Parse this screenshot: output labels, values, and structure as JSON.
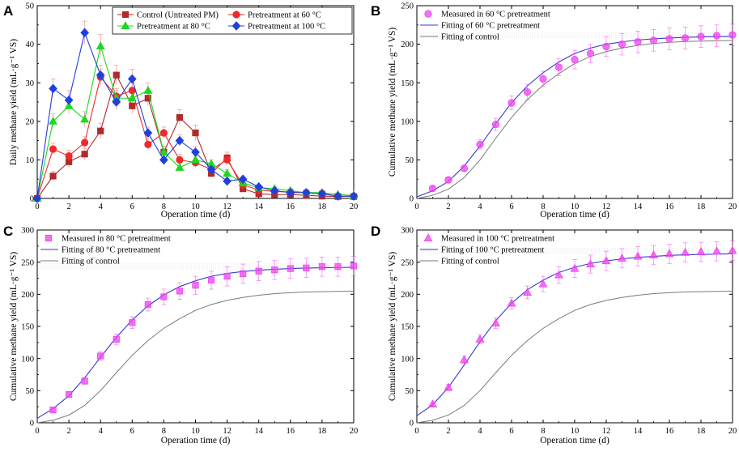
{
  "colors": {
    "control": "#b22a2a",
    "p60": "#ee2a2a",
    "p80": "#1ed81e",
    "p100": "#2040dd",
    "measured": "#ee44ee",
    "fit_treat": "#3a3acc",
    "fit_control": "#7a7a7a",
    "errorbar": "#f0a0a0"
  },
  "chart_data": [
    {
      "panel": "A",
      "type": "line",
      "xlabel": "Operation time (d)",
      "ylabel": "Daily methane yield (mL·g⁻¹ VS)",
      "xlim": [
        0,
        20
      ],
      "ylim": [
        0,
        50
      ],
      "xticks": [
        0,
        2,
        4,
        6,
        8,
        10,
        12,
        14,
        16,
        18,
        20
      ],
      "yticks": [
        0,
        10,
        20,
        30,
        40,
        50
      ],
      "legend": "top-right",
      "x": [
        0,
        1,
        2,
        3,
        4,
        5,
        6,
        7,
        8,
        9,
        10,
        11,
        12,
        13,
        14,
        15,
        16,
        17,
        18,
        19,
        20
      ],
      "series": [
        {
          "name": "Control (Untreated PM)",
          "marker": "square",
          "color": "#b22a2a",
          "values": [
            0,
            5.8,
            9.5,
            11.5,
            17.5,
            32,
            24,
            26,
            12,
            21,
            17,
            6.5,
            10.5,
            2.5,
            1.2,
            1,
            1,
            0.8,
            0.6,
            0.5,
            0.5
          ],
          "errors": [
            0,
            1.2,
            1.5,
            1.5,
            2,
            2.5,
            2,
            2,
            1.5,
            2,
            2,
            1,
            1.5,
            0.5,
            0.3,
            0.3,
            0.3,
            0.2,
            0.2,
            0.2,
            0.2
          ]
        },
        {
          "name": "Pretreatment at 60 °C",
          "marker": "circle",
          "color": "#ee2a2a",
          "values": [
            0,
            12.8,
            11,
            14.5,
            31.5,
            26.5,
            28,
            14,
            17,
            10,
            9.3,
            7.5,
            10,
            3.5,
            2.2,
            1.8,
            1.7,
            1.5,
            1.3,
            0.6,
            0.5
          ],
          "errors": [
            0,
            1.5,
            1.5,
            1.5,
            2,
            2,
            2,
            1.5,
            1.5,
            1.5,
            1.2,
            1.2,
            1.5,
            0.5,
            0.3,
            0.3,
            0.3,
            0.3,
            0.3,
            0.2,
            0.2
          ]
        },
        {
          "name": "Pretreatment at 80 °C",
          "marker": "triangle",
          "color": "#1ed81e",
          "values": [
            0,
            20,
            24,
            20.5,
            39.5,
            26,
            26,
            28,
            12,
            8,
            10,
            9,
            6.5,
            4,
            2.8,
            2.5,
            2,
            1.5,
            1.5,
            1,
            0.8
          ],
          "errors": [
            0,
            2,
            2,
            2,
            3,
            2,
            2,
            2,
            1.5,
            1,
            1,
            1,
            1,
            0.5,
            0.3,
            0.3,
            0.3,
            0.3,
            0.3,
            0.2,
            0.2
          ]
        },
        {
          "name": "Pretreatment at 100 °C",
          "marker": "diamond",
          "color": "#2040dd",
          "values": [
            0,
            28.5,
            25.5,
            43,
            32,
            25,
            31,
            17,
            10,
            15,
            12,
            7.5,
            4.5,
            5,
            3,
            2,
            1.5,
            1.5,
            1.2,
            0.6,
            0.6
          ],
          "errors": [
            0,
            2.5,
            2.5,
            3,
            2.5,
            2,
            2.5,
            1.5,
            1.5,
            1.5,
            1.5,
            1,
            1,
            0.5,
            0.3,
            0.3,
            0.3,
            0.3,
            0.3,
            0.2,
            0.2
          ]
        }
      ]
    },
    {
      "panel": "B",
      "type": "scatter",
      "xlabel": "Operation time (d)",
      "ylabel": "Cumulative methane yield (mL·g⁻¹ VS)",
      "xlim": [
        0,
        20
      ],
      "ylim": [
        0,
        250
      ],
      "xticks": [
        0,
        2,
        4,
        6,
        8,
        10,
        12,
        14,
        16,
        18,
        20
      ],
      "yticks": [
        0,
        50,
        100,
        150,
        200,
        250
      ],
      "legend": "top-left",
      "measured": {
        "name": "Measured in 60 °C pretreatment",
        "marker": "circle",
        "x": [
          1,
          2,
          3,
          4,
          5,
          6,
          7,
          8,
          9,
          10,
          11,
          12,
          13,
          14,
          15,
          16,
          17,
          18,
          19,
          20
        ],
        "y": [
          13,
          24,
          39,
          70,
          96,
          124,
          138,
          155,
          170,
          180,
          188,
          197,
          200,
          203,
          205,
          207,
          208,
          210,
          211,
          212
        ],
        "errors": [
          2,
          3,
          4,
          6,
          8,
          9,
          10,
          10,
          11,
          12,
          12,
          13,
          14,
          14,
          14,
          14,
          14,
          14,
          14,
          14
        ]
      },
      "fit": {
        "name": "Fitting of 60 °C pretreatment",
        "x": [
          0,
          1,
          2,
          3,
          4,
          5,
          6,
          7,
          8,
          9,
          10,
          11,
          12,
          13,
          14,
          15,
          16,
          17,
          18,
          19,
          20
        ],
        "y": [
          2,
          10,
          22,
          42,
          68,
          97,
          124,
          146,
          163,
          177,
          188,
          195,
          200,
          203,
          205.5,
          207,
          208,
          209,
          209.5,
          210,
          210
        ]
      },
      "control_fit": {
        "name": "Fitting of control",
        "x": [
          0,
          1,
          2,
          3,
          4,
          5,
          6,
          7,
          8,
          9,
          10,
          11,
          12,
          13,
          14,
          15,
          16,
          17,
          18,
          19,
          20
        ],
        "y": [
          0,
          4,
          12,
          27,
          50,
          78,
          105,
          128,
          147,
          162,
          175,
          184,
          190.5,
          195,
          198.5,
          201,
          202.5,
          203.5,
          204,
          204.5,
          204.8
        ]
      }
    },
    {
      "panel": "C",
      "type": "scatter",
      "xlabel": "Operation time (d)",
      "ylabel": "Cumulative methane yield (mL·g⁻¹ VS)",
      "xlim": [
        0,
        20
      ],
      "ylim": [
        0,
        300
      ],
      "xticks": [
        0,
        2,
        4,
        6,
        8,
        10,
        12,
        14,
        16,
        18,
        20
      ],
      "yticks": [
        0,
        50,
        100,
        150,
        200,
        250,
        300
      ],
      "legend": "top-left",
      "measured": {
        "name": "Measured in 80 °C pretreatment",
        "marker": "square",
        "x": [
          1,
          2,
          3,
          4,
          5,
          6,
          7,
          8,
          9,
          10,
          11,
          12,
          13,
          14,
          15,
          16,
          17,
          18,
          19,
          20
        ],
        "y": [
          20,
          44,
          65,
          104,
          130,
          156,
          184,
          196,
          205,
          214,
          222,
          228,
          232,
          236,
          238,
          240,
          241,
          243,
          243,
          244
        ],
        "errors": [
          3,
          4,
          5,
          7,
          8,
          9,
          10,
          12,
          13,
          14,
          14,
          15,
          15,
          15,
          15,
          15,
          15,
          15,
          15,
          15
        ]
      },
      "fit": {
        "name": "Fitting of 80 °C pretreatment",
        "x": [
          0,
          1,
          2,
          3,
          4,
          5,
          6,
          7,
          8,
          9,
          10,
          11,
          12,
          13,
          14,
          15,
          16,
          17,
          18,
          19,
          20
        ],
        "y": [
          7,
          22,
          42,
          70,
          102,
          133,
          160,
          182,
          199,
          212,
          221,
          228,
          232.5,
          235.5,
          237.5,
          239,
          240,
          240.8,
          241.3,
          241.7,
          242
        ]
      },
      "control_fit": {
        "name": "Fitting of control",
        "x": [
          0,
          1,
          2,
          3,
          4,
          5,
          6,
          7,
          8,
          9,
          10,
          11,
          12,
          13,
          14,
          15,
          16,
          17,
          18,
          19,
          20
        ],
        "y": [
          0,
          4,
          12,
          27,
          50,
          78,
          105,
          128,
          147,
          162,
          175,
          184,
          190.5,
          195,
          198.5,
          201,
          202.5,
          203.5,
          204,
          204.5,
          204.8
        ]
      }
    },
    {
      "panel": "D",
      "type": "scatter",
      "xlabel": "Operation time (d)",
      "ylabel": "Cumulative methane yield (mL·g⁻¹ VS)",
      "xlim": [
        0,
        20
      ],
      "ylim": [
        0,
        300
      ],
      "xticks": [
        0,
        2,
        4,
        6,
        8,
        10,
        12,
        14,
        16,
        18,
        20
      ],
      "yticks": [
        0,
        50,
        100,
        150,
        200,
        250,
        300
      ],
      "legend": "top-left",
      "measured": {
        "name": "Measured in 100 °C pretreatment",
        "marker": "triangle",
        "x": [
          1,
          2,
          3,
          4,
          5,
          6,
          7,
          8,
          9,
          10,
          11,
          12,
          13,
          14,
          15,
          16,
          17,
          18,
          19,
          20
        ],
        "y": [
          29,
          55,
          98,
          130,
          155,
          186,
          203,
          216,
          230,
          240,
          247,
          252,
          256,
          259,
          261,
          263,
          265,
          266,
          267,
          268
        ],
        "errors": [
          3,
          5,
          6,
          7,
          8,
          9,
          10,
          12,
          13,
          14,
          14,
          15,
          15,
          15,
          15,
          15,
          15,
          15,
          15,
          15
        ]
      },
      "fit": {
        "name": "Fitting of 100 °C pretreatment",
        "x": [
          0,
          1,
          2,
          3,
          4,
          5,
          6,
          7,
          8,
          9,
          10,
          11,
          12,
          13,
          14,
          15,
          16,
          17,
          18,
          19,
          20
        ],
        "y": [
          11,
          28,
          55,
          90,
          126,
          159,
          186,
          207,
          222,
          234,
          242,
          248,
          252,
          255,
          257.5,
          259,
          260.5,
          261.5,
          262,
          262.5,
          263
        ]
      },
      "control_fit": {
        "name": "Fitting of control",
        "x": [
          0,
          1,
          2,
          3,
          4,
          5,
          6,
          7,
          8,
          9,
          10,
          11,
          12,
          13,
          14,
          15,
          16,
          17,
          18,
          19,
          20
        ],
        "y": [
          0,
          4,
          12,
          27,
          50,
          78,
          105,
          128,
          147,
          162,
          175,
          184,
          190.5,
          195,
          198.5,
          201,
          202.5,
          203.5,
          204,
          204.5,
          204.8
        ]
      }
    }
  ]
}
